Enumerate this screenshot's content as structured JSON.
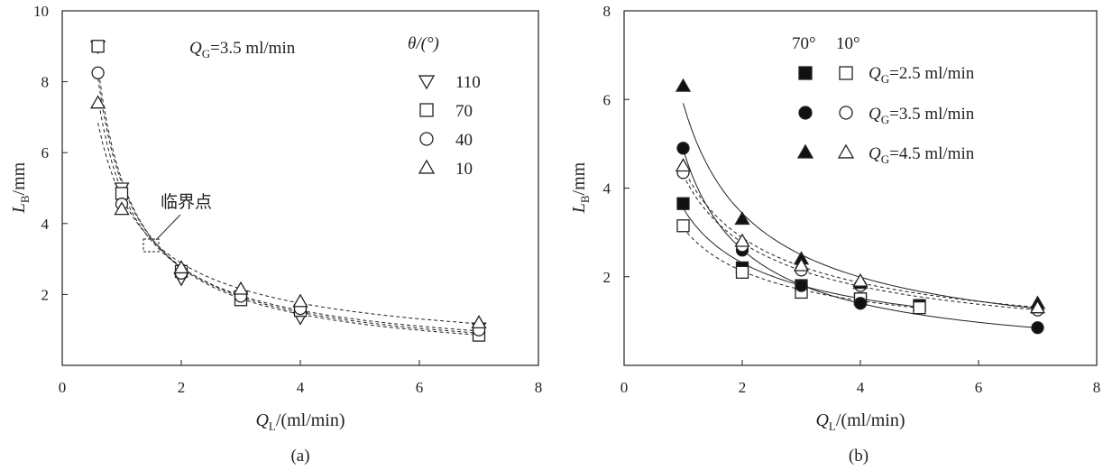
{
  "chart_data": [
    {
      "type": "scatter",
      "panel_label": "(a)",
      "xlabel": {
        "main": "Q",
        "sub": "L",
        "rest": "/(ml/min)"
      },
      "ylabel": {
        "main": "L",
        "sub": "B",
        "rest": "/mm"
      },
      "xlim": [
        0,
        8
      ],
      "ylim": [
        0,
        10
      ],
      "xticks": [
        "0",
        "2",
        "4",
        "6",
        "8"
      ],
      "yticks": [
        "2",
        "4",
        "6",
        "8",
        "10"
      ],
      "condition": {
        "main": "Q",
        "sub": "G",
        "rest": "=3.5 ml/min"
      },
      "legend_title": "θ/(°)",
      "annotation": "临界点",
      "critical_point": {
        "x": 1.5,
        "y": 3.3
      },
      "series": [
        {
          "name": "110",
          "marker": "triangle-down",
          "fill": "open",
          "x": [
            0.6,
            1.0,
            2.0,
            3.0,
            4.0,
            7.0
          ],
          "y": [
            9.0,
            5.0,
            2.45,
            1.95,
            1.35,
            1.05
          ]
        },
        {
          "name": "70",
          "marker": "square",
          "fill": "open",
          "x": [
            0.6,
            1.0,
            2.0,
            3.0,
            4.0,
            7.0
          ],
          "y": [
            9.0,
            4.85,
            2.65,
            1.85,
            1.55,
            0.85
          ]
        },
        {
          "name": "40",
          "marker": "circle",
          "fill": "open",
          "x": [
            0.6,
            1.0,
            2.0,
            3.0,
            4.0,
            7.0
          ],
          "y": [
            8.25,
            4.55,
            2.6,
            1.95,
            1.6,
            1.0
          ]
        },
        {
          "name": "10",
          "marker": "triangle-up",
          "fill": "open",
          "x": [
            0.6,
            1.0,
            2.0,
            3.0,
            4.0,
            7.0
          ],
          "y": [
            7.4,
            4.4,
            2.75,
            2.15,
            1.8,
            1.2
          ]
        }
      ]
    },
    {
      "type": "scatter",
      "panel_label": "(b)",
      "xlabel": {
        "main": "Q",
        "sub": "L",
        "rest": "/(ml/min)"
      },
      "ylabel": {
        "main": "L",
        "sub": "B",
        "rest": "/mm"
      },
      "xlim": [
        0,
        8
      ],
      "ylim": [
        0,
        8
      ],
      "xticks": [
        "0",
        "2",
        "4",
        "6",
        "8"
      ],
      "yticks": [
        "2",
        "4",
        "6",
        "8"
      ],
      "legend_headers": [
        "70°",
        "10°"
      ],
      "legend_entries": [
        {
          "main": "Q",
          "sub": "G",
          "rest": "=2.5 ml/min",
          "marker": "square"
        },
        {
          "main": "Q",
          "sub": "G",
          "rest": "=3.5 ml/min",
          "marker": "circle"
        },
        {
          "main": "Q",
          "sub": "G",
          "rest": "=4.5 ml/min",
          "marker": "triangle-up"
        }
      ],
      "series": [
        {
          "angle": "70°",
          "flow": "2.5",
          "marker": "square",
          "fill": "filled",
          "x": [
            1,
            2,
            3,
            4,
            5
          ],
          "y": [
            3.65,
            2.2,
            1.8,
            1.5,
            1.35
          ]
        },
        {
          "angle": "10°",
          "flow": "2.5",
          "marker": "square",
          "fill": "open",
          "x": [
            1,
            2,
            3,
            4,
            5
          ],
          "y": [
            3.15,
            2.1,
            1.65,
            1.5,
            1.3
          ]
        },
        {
          "angle": "70°",
          "flow": "3.5",
          "marker": "circle",
          "fill": "filled",
          "x": [
            1,
            2,
            3,
            4,
            7
          ],
          "y": [
            4.9,
            2.6,
            1.8,
            1.4,
            0.85
          ]
        },
        {
          "angle": "10°",
          "flow": "3.5",
          "marker": "circle",
          "fill": "open",
          "x": [
            1,
            2,
            3,
            4,
            7
          ],
          "y": [
            4.35,
            2.7,
            2.15,
            1.8,
            1.25
          ]
        },
        {
          "angle": "70°",
          "flow": "4.5",
          "marker": "triangle-up",
          "fill": "filled",
          "x": [
            1,
            2,
            3,
            4,
            7
          ],
          "y": [
            6.3,
            3.3,
            2.4,
            1.85,
            1.4
          ]
        },
        {
          "angle": "10°",
          "flow": "4.5",
          "marker": "triangle-up",
          "fill": "open",
          "x": [
            1,
            2,
            3,
            4,
            7
          ],
          "y": [
            4.5,
            2.8,
            2.25,
            1.9,
            1.3
          ]
        }
      ]
    }
  ]
}
